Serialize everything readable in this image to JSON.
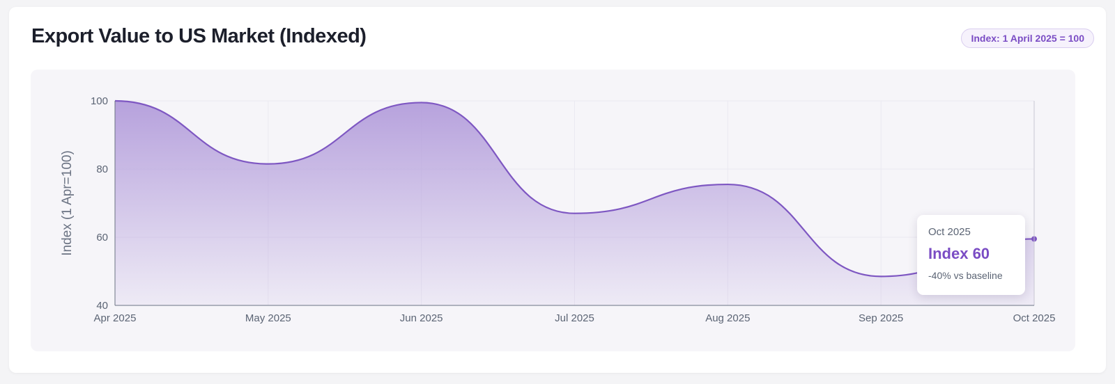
{
  "header": {
    "title": "Export Value to US Market (Indexed)",
    "badge": "Index: 1 April 2025 = 100"
  },
  "tooltip": {
    "date": "Oct 2025",
    "value": "Index 60",
    "delta": "-40% vs baseline"
  },
  "colors": {
    "line": "#7e57c2",
    "fill": "#b39ddb",
    "accent": "#7a4cc4"
  },
  "chart_data": {
    "type": "area",
    "x": [
      "Apr 2025",
      "May 2025",
      "Jun 2025",
      "Jul 2025",
      "Aug 2025",
      "Sep 2025",
      "Oct 2025"
    ],
    "series": [
      {
        "values": [
          100,
          81.5,
          99.5,
          67,
          75.5,
          48.5,
          59.5
        ]
      }
    ],
    "ylabel": "Index (1 Apr=100)",
    "xlabel": "",
    "ylim": [
      40,
      100
    ],
    "yticks": [
      40,
      60,
      80,
      100
    ],
    "grid": true,
    "highlight_index": 6
  }
}
